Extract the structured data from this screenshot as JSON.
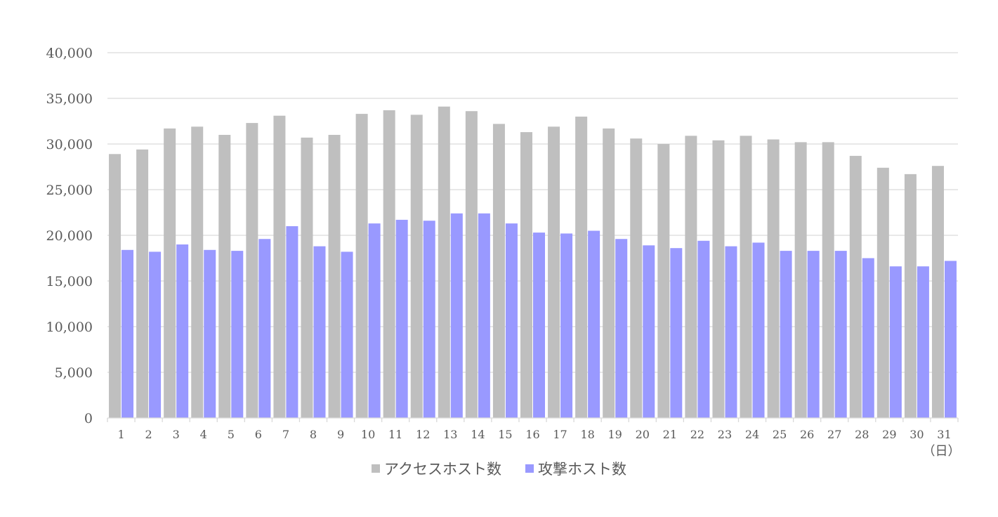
{
  "chart_data": {
    "type": "bar",
    "title": "",
    "xlabel": "",
    "ylabel": "",
    "x_unit_label": "（日）",
    "ylim": [
      0,
      40000
    ],
    "yticks": [
      0,
      5000,
      10000,
      15000,
      20000,
      25000,
      30000,
      35000,
      40000
    ],
    "ytick_labels": [
      "0",
      "5,000",
      "10,000",
      "15,000",
      "20,000",
      "25,000",
      "30,000",
      "35,000",
      "40,000"
    ],
    "grid": true,
    "legend_position": "bottom",
    "categories": [
      "1",
      "2",
      "3",
      "4",
      "5",
      "6",
      "7",
      "8",
      "9",
      "10",
      "11",
      "12",
      "13",
      "14",
      "15",
      "16",
      "17",
      "18",
      "19",
      "20",
      "21",
      "22",
      "23",
      "24",
      "25",
      "26",
      "27",
      "28",
      "29",
      "30",
      "31"
    ],
    "series": [
      {
        "name": "アクセスホスト数",
        "color": "#bfbfbf",
        "values": [
          28900,
          29400,
          31700,
          31900,
          31000,
          32300,
          33100,
          30700,
          31000,
          33300,
          33700,
          33200,
          34100,
          33600,
          32200,
          31300,
          31900,
          33000,
          31700,
          30600,
          30000,
          30900,
          30400,
          30900,
          30500,
          30200,
          30200,
          28700,
          27400,
          26700,
          27600
        ]
      },
      {
        "name": "攻撃ホスト数",
        "color": "#9999ff",
        "values": [
          18400,
          18200,
          19000,
          18400,
          18300,
          19600,
          21000,
          18800,
          18200,
          21300,
          21700,
          21600,
          22400,
          22400,
          21300,
          20300,
          20200,
          20500,
          19600,
          18900,
          18600,
          19400,
          18800,
          19200,
          18300,
          18300,
          18300,
          17500,
          16600,
          16600,
          17200
        ]
      }
    ]
  }
}
